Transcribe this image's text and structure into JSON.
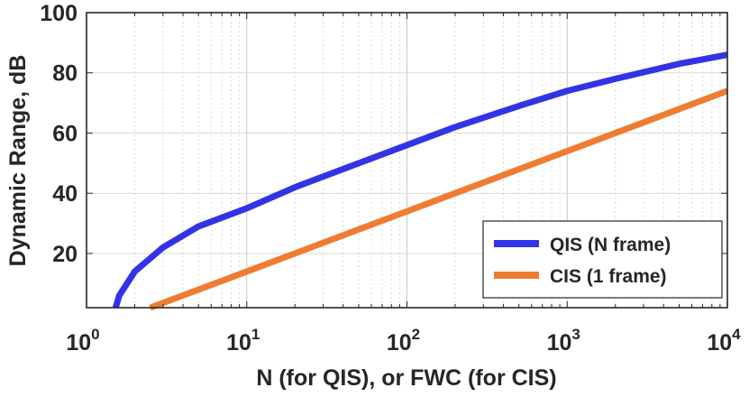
{
  "chart_data": {
    "type": "line",
    "title": "",
    "xlabel": "N (for QIS), or FWC (for CIS)",
    "ylabel": "Dynamic Range, dB",
    "xscale": "log",
    "xlim": [
      1,
      10000
    ],
    "ylim": [
      2,
      100
    ],
    "grid": "on (major and minor x, major y, dotted)",
    "legend_position": "bottom-right",
    "x_ticks": [
      {
        "base": "10",
        "exp": "0",
        "value": 1
      },
      {
        "base": "10",
        "exp": "1",
        "value": 10
      },
      {
        "base": "10",
        "exp": "2",
        "value": 100
      },
      {
        "base": "10",
        "exp": "3",
        "value": 1000
      },
      {
        "base": "10",
        "exp": "4",
        "value": 10000
      }
    ],
    "y_ticks": [
      "20",
      "40",
      "60",
      "80",
      "100"
    ],
    "series": [
      {
        "name": "QIS (N frame)",
        "color": "#3333e6",
        "points": [
          {
            "x": 1.52,
            "y": 2
          },
          {
            "x": 1.6,
            "y": 6
          },
          {
            "x": 2,
            "y": 14
          },
          {
            "x": 3,
            "y": 22
          },
          {
            "x": 5,
            "y": 29
          },
          {
            "x": 10,
            "y": 35
          },
          {
            "x": 20,
            "y": 42
          },
          {
            "x": 50,
            "y": 50
          },
          {
            "x": 100,
            "y": 56
          },
          {
            "x": 200,
            "y": 62
          },
          {
            "x": 500,
            "y": 69
          },
          {
            "x": 1000,
            "y": 74
          },
          {
            "x": 2000,
            "y": 78
          },
          {
            "x": 5000,
            "y": 83
          },
          {
            "x": 10000,
            "y": 86
          }
        ]
      },
      {
        "name": "CIS (1 frame)",
        "color": "#ed7d31",
        "points": [
          {
            "x": 2.5,
            "y": 2
          },
          {
            "x": 10,
            "y": 14
          },
          {
            "x": 100,
            "y": 34
          },
          {
            "x": 1000,
            "y": 54
          },
          {
            "x": 10000,
            "y": 74
          }
        ]
      }
    ]
  }
}
